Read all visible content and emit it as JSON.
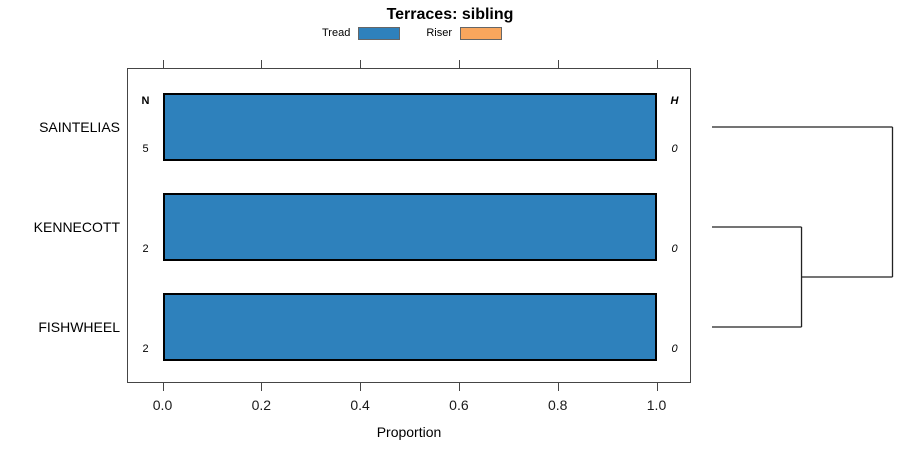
{
  "chart_data": {
    "type": "bar",
    "orientation": "horizontal",
    "title": "Terraces: sibling",
    "xlabel": "Proportion",
    "xlim": [
      0,
      1
    ],
    "x_tick_values": [
      0,
      0.2,
      0.4,
      0.6,
      0.8,
      1.0
    ],
    "x_tick_labels": [
      "0.0",
      "0.2",
      "0.4",
      "0.6",
      "0.8",
      "1.0"
    ],
    "grid": false,
    "legend_position": "top",
    "categories": [
      "SAINTELIAS",
      "KENNECOTT",
      "FISHWHEEL"
    ],
    "series": [
      {
        "name": "Tread",
        "color": "#2E81BC",
        "values": [
          1.0,
          1.0,
          1.0
        ]
      },
      {
        "name": "Riser",
        "color": "#F9A65D",
        "values": [
          0.0,
          0.0,
          0.0
        ]
      }
    ],
    "n_header": "N",
    "h_header": "H",
    "n_values": [
      "5",
      "2",
      "2"
    ],
    "h_values": [
      "0",
      "0",
      "0"
    ],
    "dendrogram": {
      "side": "right",
      "tree": {
        "height": 1.0,
        "children": [
          {
            "leaf": "SAINTELIAS"
          },
          {
            "height": 0.496,
            "children": [
              {
                "leaf": "KENNECOTT"
              },
              {
                "leaf": "FISHWHEEL"
              }
            ]
          }
        ]
      }
    }
  },
  "colors": {
    "axis": "#454545",
    "bar_border": "#000000",
    "dendrogram_line": "#222222",
    "background": "#ffffff"
  }
}
